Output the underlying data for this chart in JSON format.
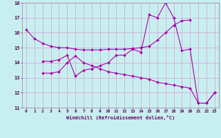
{
  "xlabel": "Windchill (Refroidissement éolien,°C)",
  "xlim": [
    -0.5,
    23.5
  ],
  "ylim": [
    11,
    18
  ],
  "yticks": [
    11,
    12,
    13,
    14,
    15,
    16,
    17,
    18
  ],
  "xticks": [
    0,
    1,
    2,
    3,
    4,
    5,
    6,
    7,
    8,
    9,
    10,
    11,
    12,
    13,
    14,
    15,
    16,
    17,
    18,
    19,
    20,
    21,
    22,
    23
  ],
  "background_color": "#c8efef",
  "grid_color": "#d8a8d8",
  "line_color": "#aa00aa",
  "lines": [
    {
      "x": [
        0,
        1,
        2,
        3,
        4,
        5,
        6,
        7,
        8,
        9,
        10,
        11,
        12,
        13,
        14,
        15,
        16,
        17,
        18,
        19,
        20
      ],
      "y": [
        16.2,
        15.6,
        15.3,
        15.1,
        15.0,
        15.0,
        14.9,
        14.85,
        14.85,
        14.85,
        14.9,
        14.9,
        14.9,
        14.95,
        15.0,
        15.1,
        15.5,
        16.0,
        16.5,
        16.8,
        16.85
      ]
    },
    {
      "x": [
        2,
        3,
        4,
        5,
        6,
        7,
        8,
        9,
        10,
        11,
        12,
        13,
        14,
        15,
        16,
        17,
        18,
        19,
        20,
        21,
        22,
        23
      ],
      "y": [
        14.1,
        14.1,
        14.2,
        14.5,
        13.1,
        13.5,
        13.6,
        13.8,
        14.0,
        14.5,
        14.5,
        14.9,
        14.7,
        17.2,
        17.0,
        18.0,
        17.0,
        14.8,
        14.9,
        11.3,
        11.3,
        12.0
      ]
    },
    {
      "x": [
        2,
        3,
        4,
        5,
        6,
        7,
        8,
        9,
        10,
        11,
        12,
        13,
        14,
        15,
        16,
        17,
        18,
        19,
        20,
        21,
        22,
        23
      ],
      "y": [
        13.3,
        13.3,
        13.4,
        14.0,
        14.45,
        14.0,
        13.8,
        13.6,
        13.4,
        13.3,
        13.2,
        13.1,
        13.0,
        12.9,
        12.7,
        12.6,
        12.5,
        12.4,
        12.3,
        11.3,
        11.3,
        12.0
      ]
    }
  ]
}
